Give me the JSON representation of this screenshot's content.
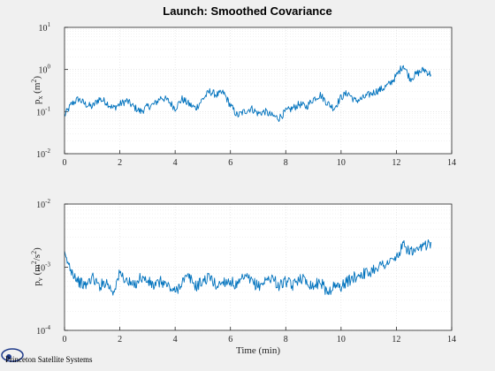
{
  "chart_data": [
    {
      "type": "line",
      "title": "Launch: Smoothed Covariance",
      "xlabel": "",
      "ylabel": {
        "var": "p",
        "sub": "x",
        "unit": "(m",
        "sup": "2",
        "close": ")"
      },
      "yscale": "log",
      "xlim": [
        0,
        14
      ],
      "ylim": [
        0.01,
        10
      ],
      "xticks": [
        "0",
        "2",
        "4",
        "6",
        "8",
        "10",
        "12",
        "14"
      ],
      "yticks": [
        {
          "base": "10",
          "exp": "-2"
        },
        {
          "base": "10",
          "exp": "-1"
        },
        {
          "base": "10",
          "exp": "0"
        },
        {
          "base": "10",
          "exp": "1"
        }
      ],
      "grid": true,
      "color": "#0072BD",
      "series": [
        {
          "x": [
            0.0,
            0.25,
            0.5,
            0.75,
            1.0,
            1.25,
            1.5,
            1.75,
            2.0,
            2.25,
            2.5,
            2.75,
            3.0,
            3.25,
            3.5,
            3.75,
            4.0,
            4.25,
            4.5,
            4.75,
            5.0,
            5.25,
            5.5,
            5.75,
            6.0,
            6.25,
            6.5,
            6.75,
            7.0,
            7.25,
            7.5,
            7.75,
            8.0,
            8.25,
            8.5,
            8.75,
            9.0,
            9.25,
            9.5,
            9.75,
            10.0,
            10.25,
            10.5,
            10.75,
            11.0,
            11.25,
            11.5,
            11.75,
            12.0,
            12.25,
            12.5,
            12.75,
            13.0,
            13.25
          ],
          "y": [
            0.08,
            0.15,
            0.2,
            0.15,
            0.13,
            0.2,
            0.17,
            0.12,
            0.15,
            0.18,
            0.13,
            0.1,
            0.13,
            0.15,
            0.22,
            0.18,
            0.12,
            0.2,
            0.15,
            0.12,
            0.2,
            0.3,
            0.25,
            0.28,
            0.14,
            0.08,
            0.1,
            0.12,
            0.09,
            0.1,
            0.08,
            0.07,
            0.1,
            0.12,
            0.15,
            0.13,
            0.2,
            0.25,
            0.16,
            0.12,
            0.22,
            0.28,
            0.18,
            0.2,
            0.25,
            0.3,
            0.35,
            0.45,
            0.7,
            1.3,
            0.6,
            0.8,
            1.0,
            0.75
          ]
        }
      ]
    },
    {
      "type": "line",
      "title": "",
      "xlabel": "Time (min)",
      "ylabel": {
        "var": "p",
        "sub": "v",
        "unit": "(m",
        "sup": "2",
        "mid": "/s",
        "sup2": "2",
        "close": ")"
      },
      "yscale": "log",
      "xlim": [
        0,
        14
      ],
      "ylim": [
        0.0001,
        0.01
      ],
      "xticks": [
        "0",
        "2",
        "4",
        "6",
        "8",
        "10",
        "12",
        "14"
      ],
      "yticks": [
        {
          "base": "10",
          "exp": "-4"
        },
        {
          "base": "10",
          "exp": "-3"
        },
        {
          "base": "10",
          "exp": "-2"
        }
      ],
      "grid": true,
      "color": "#0072BD",
      "series": [
        {
          "x": [
            0.0,
            0.25,
            0.5,
            0.75,
            1.0,
            1.25,
            1.5,
            1.75,
            2.0,
            2.25,
            2.5,
            2.75,
            3.0,
            3.25,
            3.5,
            3.75,
            4.0,
            4.25,
            4.5,
            4.75,
            5.0,
            5.25,
            5.5,
            5.75,
            6.0,
            6.25,
            6.5,
            6.75,
            7.0,
            7.25,
            7.5,
            7.75,
            8.0,
            8.25,
            8.5,
            8.75,
            9.0,
            9.25,
            9.5,
            9.75,
            10.0,
            10.25,
            10.5,
            10.75,
            11.0,
            11.25,
            11.5,
            11.75,
            12.0,
            12.25,
            12.5,
            12.75,
            13.0,
            13.25
          ],
          "y": [
            0.0015,
            0.0009,
            0.0006,
            0.0005,
            0.0007,
            0.0005,
            0.0006,
            0.0004,
            0.0008,
            0.0006,
            0.0005,
            0.0007,
            0.0006,
            0.0005,
            0.0006,
            0.0005,
            0.0004,
            0.0006,
            0.0007,
            0.0005,
            0.0006,
            0.0007,
            0.0005,
            0.0006,
            0.0006,
            0.0005,
            0.0007,
            0.0006,
            0.0005,
            0.0006,
            0.0007,
            0.0005,
            0.0006,
            0.0005,
            0.0007,
            0.0006,
            0.0005,
            0.0006,
            0.0004,
            0.0005,
            0.0005,
            0.0006,
            0.0007,
            0.0008,
            0.0008,
            0.001,
            0.0011,
            0.0012,
            0.0014,
            0.0022,
            0.0018,
            0.0017,
            0.0022,
            0.0025
          ]
        }
      ]
    }
  ],
  "branding": {
    "company": "Princeton Satellite Systems"
  }
}
